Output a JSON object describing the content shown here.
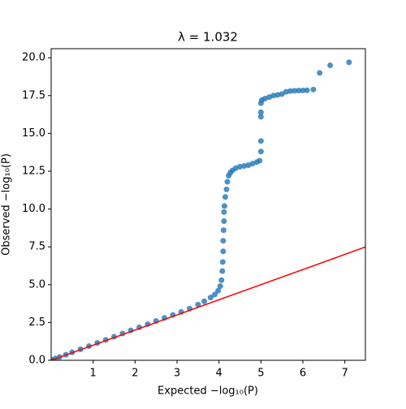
{
  "chart_data": {
    "type": "scatter",
    "title": "λ = 1.032",
    "x_label": "Expected −log₁₀(P)",
    "y_label": "Observed −log₁₀(P)",
    "xlim": [
      0,
      7.49
    ],
    "ylim": [
      0,
      20.6
    ],
    "xticks": [
      1,
      2,
      3,
      4,
      5,
      6,
      7
    ],
    "yticks": [
      {
        "value": 0,
        "label": "0.0"
      },
      2.5,
      {
        "value": 5,
        "label": "5.0"
      },
      7.5,
      {
        "value": 10,
        "label": "10.0"
      },
      12.5,
      {
        "value": 15,
        "label": "15.0"
      },
      17.5,
      {
        "value": 20,
        "label": "20.0"
      }
    ],
    "series": [
      {
        "color": "#1f77b4",
        "kind": "points",
        "x": [
          0.02,
          0.1,
          0.2,
          0.35,
          0.5,
          0.7,
          0.9,
          1.1,
          1.3,
          1.5,
          1.7,
          1.9,
          2.1,
          2.3,
          2.5,
          2.7,
          2.9,
          3.1,
          3.3,
          3.5,
          3.65,
          3.8,
          3.9,
          3.98,
          4.03,
          4.06,
          4.08,
          4.09,
          4.1,
          4.1,
          4.11,
          4.12,
          4.12,
          4.13,
          4.15,
          4.18,
          4.2,
          4.23,
          4.27,
          4.32,
          4.4,
          4.5,
          4.6,
          4.7,
          4.8,
          4.9,
          4.97,
          5.0,
          5.0,
          5.0,
          5.0,
          5.0,
          5.02,
          5.1,
          5.2,
          5.3,
          5.4,
          5.5,
          5.6,
          5.7,
          5.8,
          5.9,
          6.0,
          6.1,
          6.25,
          6.4,
          6.65,
          7.1
        ],
        "y": [
          0.03,
          0.12,
          0.22,
          0.37,
          0.53,
          0.73,
          0.94,
          1.15,
          1.35,
          1.56,
          1.77,
          1.98,
          2.18,
          2.39,
          2.6,
          2.8,
          3.0,
          3.2,
          3.42,
          3.68,
          3.9,
          4.15,
          4.35,
          4.6,
          4.9,
          5.3,
          5.9,
          6.5,
          7.2,
          7.9,
          8.6,
          9.2,
          9.8,
          10.2,
          10.8,
          11.3,
          11.8,
          12.2,
          12.4,
          12.55,
          12.7,
          12.8,
          12.85,
          12.9,
          13.0,
          13.1,
          13.2,
          13.8,
          14.5,
          16.1,
          16.4,
          17.0,
          17.2,
          17.3,
          17.4,
          17.5,
          17.55,
          17.6,
          17.75,
          17.8,
          17.82,
          17.83,
          17.84,
          17.85,
          17.9,
          19.0,
          19.5,
          19.7
        ]
      },
      {
        "color": "#ff0000",
        "kind": "line",
        "x": [
          0,
          7.49
        ],
        "y": [
          0,
          7.49
        ]
      }
    ]
  }
}
